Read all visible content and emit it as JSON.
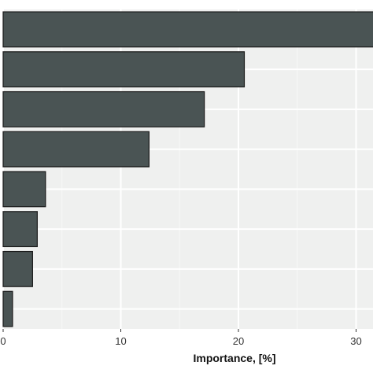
{
  "chart_data": {
    "type": "bar",
    "orientation": "horizontal",
    "categories": [
      "",
      "",
      "",
      "",
      "",
      "",
      "",
      ""
    ],
    "values": [
      31.5,
      20.5,
      17.1,
      12.4,
      3.6,
      2.9,
      2.5,
      0.8
    ],
    "xlabel": "Importance, [%]",
    "ylabel": "",
    "xlim": [
      0,
      31.5
    ],
    "xticks": [
      0,
      10,
      20,
      30
    ],
    "grid": true,
    "colors": {
      "bar_fill": "#4a5454",
      "bar_stroke": "#1a1a1a",
      "panel_background": "#eff0ef",
      "grid_major": "#ffffff",
      "grid_minor": "#f7f7f7"
    }
  }
}
